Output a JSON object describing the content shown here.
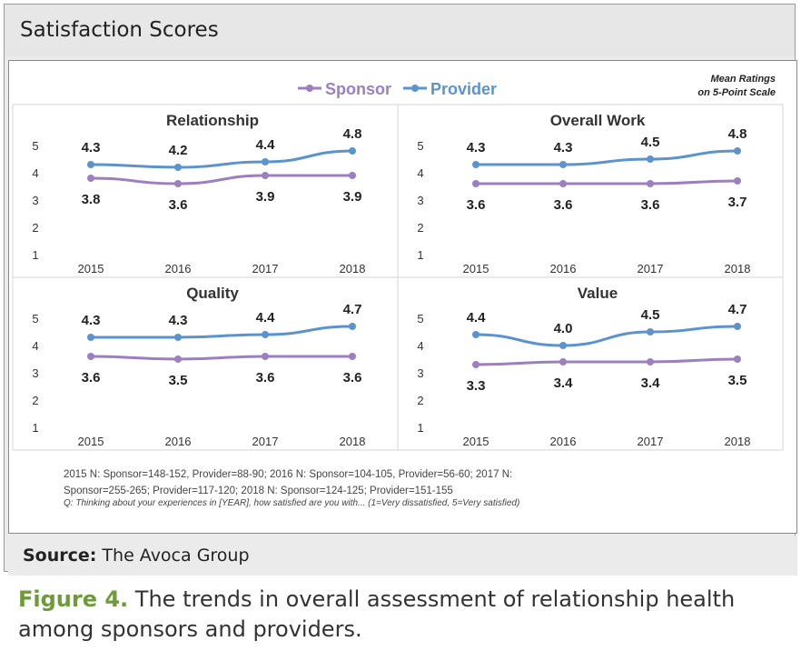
{
  "header": {
    "title": "Satisfaction Scores"
  },
  "legend": {
    "note_line1": "Mean Ratings",
    "note_line2": "on 5-Point Scale"
  },
  "footnote": {
    "line1": "2015 N: Sponsor=148-152, Provider=88-90; 2016 N: Sponsor=104-105, Provider=56-60; 2017 N:",
    "line2": "Sponsor=255-265; Provider=117-120; 2018 N: Sponsor=124-125; Provider=151-155",
    "question": "Q: Thinking about your experiences in [YEAR], how satisfied are you with... (1=Very dissatisfied, 5=Very satisfied)"
  },
  "source": {
    "label": "Source:",
    "text": " The Avoca Group"
  },
  "caption": {
    "figure_label": "Figure 4.",
    "text": " The trends in overall assessment of relationship health among sponsors and providers."
  },
  "colors": {
    "sponsor": "#9b7fbf",
    "provider": "#5b93cf"
  },
  "chart_data": [
    {
      "type": "line",
      "title": "Relationship",
      "categories": [
        "2015",
        "2016",
        "2017",
        "2018"
      ],
      "ylim": [
        1,
        5
      ],
      "yticks": [
        1,
        2,
        3,
        4,
        5
      ],
      "series": [
        {
          "name": "Sponsor",
          "values": [
            3.8,
            3.6,
            3.9,
            3.9
          ]
        },
        {
          "name": "Provider",
          "values": [
            4.3,
            4.2,
            4.4,
            4.8
          ]
        }
      ]
    },
    {
      "type": "line",
      "title": "Overall Work",
      "categories": [
        "2015",
        "2016",
        "2017",
        "2018"
      ],
      "ylim": [
        1,
        5
      ],
      "yticks": [
        1,
        2,
        3,
        4,
        5
      ],
      "series": [
        {
          "name": "Sponsor",
          "values": [
            3.6,
            3.6,
            3.6,
            3.7
          ]
        },
        {
          "name": "Provider",
          "values": [
            4.3,
            4.3,
            4.5,
            4.8
          ]
        }
      ]
    },
    {
      "type": "line",
      "title": "Quality",
      "categories": [
        "2015",
        "2016",
        "2017",
        "2018"
      ],
      "ylim": [
        1,
        5
      ],
      "yticks": [
        1,
        2,
        3,
        4,
        5
      ],
      "series": [
        {
          "name": "Sponsor",
          "values": [
            3.6,
            3.5,
            3.6,
            3.6
          ]
        },
        {
          "name": "Provider",
          "values": [
            4.3,
            4.3,
            4.4,
            4.7
          ]
        }
      ]
    },
    {
      "type": "line",
      "title": "Value",
      "categories": [
        "2015",
        "2016",
        "2017",
        "2018"
      ],
      "ylim": [
        1,
        5
      ],
      "yticks": [
        1,
        2,
        3,
        4,
        5
      ],
      "series": [
        {
          "name": "Sponsor",
          "values": [
            3.3,
            3.4,
            3.4,
            3.5
          ]
        },
        {
          "name": "Provider",
          "values": [
            4.4,
            4.0,
            4.5,
            4.7
          ]
        }
      ]
    }
  ]
}
